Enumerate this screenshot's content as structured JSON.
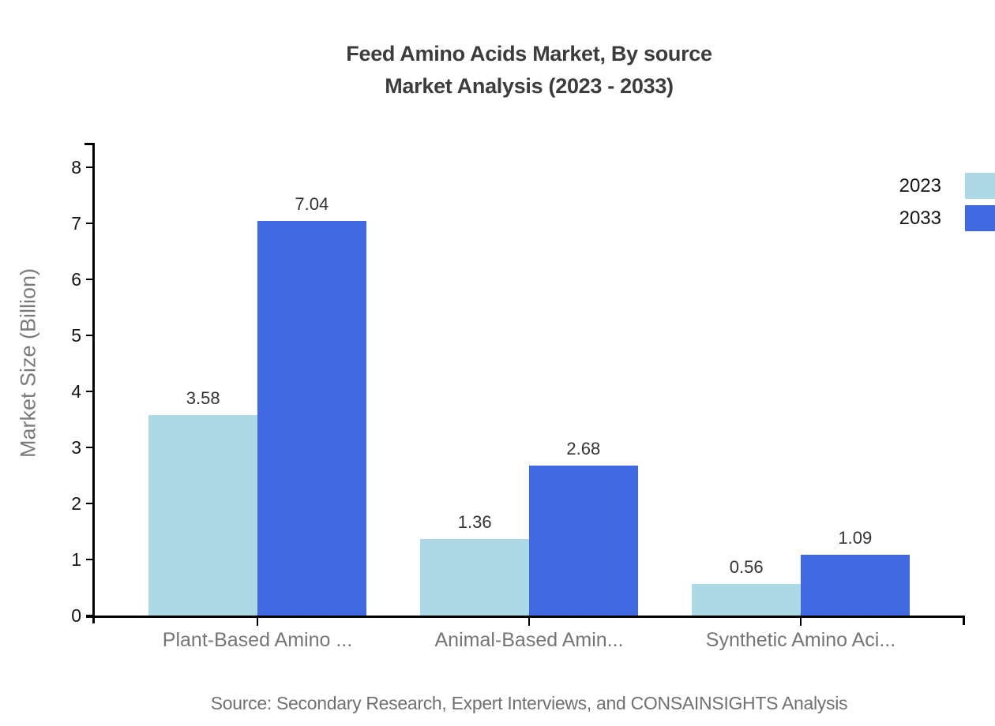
{
  "title": {
    "line1": "Feed Amino Acids Market, By source",
    "line2": "Market Analysis (2023 - 2033)"
  },
  "source_note": "Source: Secondary Research, Expert Interviews, and CONSAINSIGHTS Analysis",
  "chart_data": {
    "type": "bar",
    "title": "Feed Amino Acids Market, By source Market Analysis (2023 - 2033)",
    "categories": [
      "Plant-Based Amino ...",
      "Animal-Based Amin...",
      "Synthetic Amino Aci..."
    ],
    "series": [
      {
        "name": "2023",
        "color": "#ADD8E6",
        "values": [
          3.58,
          1.36,
          0.56
        ]
      },
      {
        "name": "2033",
        "color": "#4169E1",
        "values": [
          7.04,
          2.68,
          1.09
        ]
      }
    ],
    "xlabel": "",
    "ylabel": "Market Size (Billion)",
    "yticks": [
      0,
      1,
      2,
      3,
      4,
      5,
      6,
      7,
      8
    ],
    "ylim": [
      0,
      8.44
    ],
    "grid": false,
    "legend_position": "top-right",
    "value_labels": "2-decimal data labels above each bar"
  },
  "colors": {
    "axis": "#000000",
    "title_text": "#3c3c3c",
    "value_label_text": "#333333",
    "category_label_text": "#757575",
    "y_axis_title_text": "#7b7b7b",
    "tick_label_text": "#141414",
    "source_text": "#707070",
    "background": "#ffffff",
    "series_2023": "#ADD8E6",
    "series_2033": "#4169E1"
  }
}
